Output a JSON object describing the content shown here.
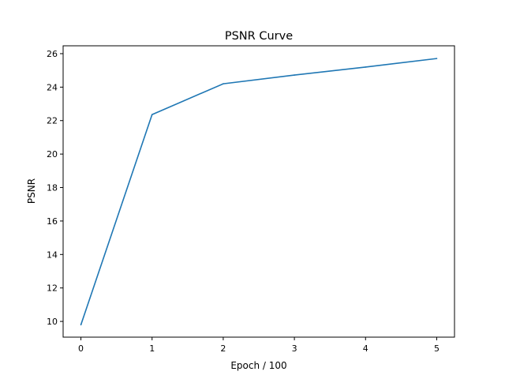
{
  "chart_data": {
    "type": "line",
    "title": "PSNR Curve",
    "xlabel": "Epoch / 100",
    "ylabel": "PSNR",
    "x": [
      0,
      1,
      2,
      3,
      4,
      5
    ],
    "series": [
      {
        "values": [
          9.8,
          22.36,
          24.2,
          24.72,
          25.2,
          25.71
        ],
        "color": "#1f77b4"
      }
    ],
    "xlim": [
      -0.25,
      5.25
    ],
    "ylim": [
      9.06,
      26.47
    ],
    "xticks": [
      "0",
      "1",
      "2",
      "3",
      "4",
      "5"
    ],
    "yticks": [
      "10",
      "12",
      "14",
      "16",
      "18",
      "20",
      "22",
      "24",
      "26"
    ],
    "grid": false
  }
}
